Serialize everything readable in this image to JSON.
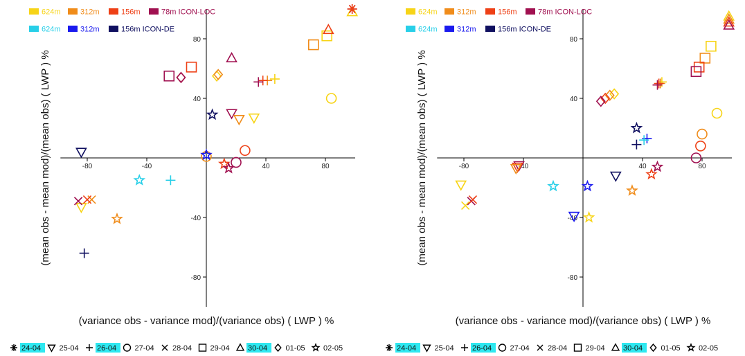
{
  "chart_data": [
    {
      "type": "scatter",
      "xlabel": "(variance obs - variance mod)/(variance obs) ( LWP ) %",
      "ylabel": "(mean obs - mean mod)/(mean obs) ( LWP ) %",
      "xlim": [
        -98,
        100
      ],
      "ylim": [
        -100,
        100
      ],
      "xticks": [
        -80,
        -40,
        40,
        80
      ],
      "yticks": [
        -80,
        -40,
        40,
        80
      ],
      "points": [
        {
          "x": 98,
          "y": 98,
          "color": "#f7d417",
          "marker": "triangle"
        },
        {
          "x": 98,
          "y": 100,
          "color": "#a01050",
          "marker": "asterisk"
        },
        {
          "x": 98,
          "y": 100,
          "color": "#ee4016",
          "marker": "asterisk"
        },
        {
          "x": 81,
          "y": 82,
          "color": "#f7d417",
          "marker": "square"
        },
        {
          "x": 82,
          "y": 86,
          "color": "#ee4016",
          "marker": "triangle"
        },
        {
          "x": 72,
          "y": 76,
          "color": "#f08c1a",
          "marker": "square"
        },
        {
          "x": 84,
          "y": 40,
          "color": "#f7d417",
          "marker": "circle"
        },
        {
          "x": 46,
          "y": 53,
          "color": "#f7d417",
          "marker": "plus"
        },
        {
          "x": 41,
          "y": 52,
          "color": "#f08c1a",
          "marker": "plus"
        },
        {
          "x": 38,
          "y": 52,
          "color": "#ee4016",
          "marker": "plus"
        },
        {
          "x": 35,
          "y": 51,
          "color": "#a01050",
          "marker": "plus"
        },
        {
          "x": 17,
          "y": 67,
          "color": "#a01050",
          "marker": "triangle"
        },
        {
          "x": 7,
          "y": 55,
          "color": "#f7d417",
          "marker": "diamond"
        },
        {
          "x": 8,
          "y": 56,
          "color": "#f08c1a",
          "marker": "diamond"
        },
        {
          "x": -17,
          "y": 54,
          "color": "#ee4016",
          "marker": "diamond"
        },
        {
          "x": -17,
          "y": 54,
          "color": "#a01050",
          "marker": "diamond"
        },
        {
          "x": -25,
          "y": 55,
          "color": "#a01050",
          "marker": "square"
        },
        {
          "x": -10,
          "y": 61,
          "color": "#ee4016",
          "marker": "square"
        },
        {
          "x": 4,
          "y": 29,
          "color": "#101060",
          "marker": "star"
        },
        {
          "x": 17,
          "y": 30,
          "color": "#a01050",
          "marker": "triangle-down"
        },
        {
          "x": 22,
          "y": 26,
          "color": "#f08c1a",
          "marker": "triangle-down"
        },
        {
          "x": 32,
          "y": 27,
          "color": "#f7d417",
          "marker": "triangle-down"
        },
        {
          "x": 26,
          "y": 5,
          "color": "#ee4016",
          "marker": "circle"
        },
        {
          "x": 20,
          "y": -3,
          "color": "#a01050",
          "marker": "circle"
        },
        {
          "x": 12,
          "y": -4,
          "color": "#ee4016",
          "marker": "star"
        },
        {
          "x": 15,
          "y": -7,
          "color": "#a01050",
          "marker": "star"
        },
        {
          "x": 0,
          "y": 1,
          "color": "#f08c1a",
          "marker": "circle"
        },
        {
          "x": 0,
          "y": 2,
          "color": "#1a1aee",
          "marker": "star"
        },
        {
          "x": -84,
          "y": 4,
          "color": "#101060",
          "marker": "triangle-down"
        },
        {
          "x": -45,
          "y": -15,
          "color": "#28cfe8",
          "marker": "star"
        },
        {
          "x": -24,
          "y": -15,
          "color": "#28cfe8",
          "marker": "plus"
        },
        {
          "x": -60,
          "y": -41,
          "color": "#f08c1a",
          "marker": "star"
        },
        {
          "x": -84,
          "y": -33,
          "color": "#f7d417",
          "marker": "triangle-down"
        },
        {
          "x": -77,
          "y": -28,
          "color": "#f08c1a",
          "marker": "cross"
        },
        {
          "x": -80,
          "y": -28,
          "color": "#ee4016",
          "marker": "cross"
        },
        {
          "x": -86,
          "y": -29,
          "color": "#a01050",
          "marker": "cross"
        },
        {
          "x": -82,
          "y": -64,
          "color": "#101060",
          "marker": "plus"
        }
      ]
    },
    {
      "type": "scatter",
      "xlabel": "(variance obs - variance mod)/(variance obs) ( LWP ) %",
      "ylabel": "(mean obs - mean mod)/(mean obs) ( LWP ) %",
      "xlim": [
        -98,
        100
      ],
      "ylim": [
        -100,
        100
      ],
      "xticks": [
        -80,
        -40,
        40,
        80
      ],
      "yticks": [
        -80,
        -40,
        40,
        80
      ],
      "points": [
        {
          "x": 98,
          "y": 95,
          "color": "#f7d417",
          "marker": "triangle"
        },
        {
          "x": 98,
          "y": 93,
          "color": "#f08c1a",
          "marker": "triangle"
        },
        {
          "x": 98,
          "y": 91,
          "color": "#ee4016",
          "marker": "triangle"
        },
        {
          "x": 98,
          "y": 89,
          "color": "#a01050",
          "marker": "triangle"
        },
        {
          "x": 86,
          "y": 75,
          "color": "#f7d417",
          "marker": "square"
        },
        {
          "x": 82,
          "y": 67,
          "color": "#f08c1a",
          "marker": "square"
        },
        {
          "x": 78,
          "y": 61,
          "color": "#ee4016",
          "marker": "square"
        },
        {
          "x": 76,
          "y": 58,
          "color": "#a01050",
          "marker": "square"
        },
        {
          "x": 90,
          "y": 30,
          "color": "#f7d417",
          "marker": "circle"
        },
        {
          "x": 80,
          "y": 16,
          "color": "#f08c1a",
          "marker": "circle"
        },
        {
          "x": 79,
          "y": 8,
          "color": "#ee4016",
          "marker": "circle"
        },
        {
          "x": 76,
          "y": 0,
          "color": "#a01050",
          "marker": "circle"
        },
        {
          "x": 53,
          "y": 51,
          "color": "#f7d417",
          "marker": "plus"
        },
        {
          "x": 52,
          "y": 50,
          "color": "#f08c1a",
          "marker": "plus"
        },
        {
          "x": 51,
          "y": 50,
          "color": "#ee4016",
          "marker": "plus"
        },
        {
          "x": 50,
          "y": 49,
          "color": "#a01050",
          "marker": "plus"
        },
        {
          "x": 21,
          "y": 43,
          "color": "#f7d417",
          "marker": "diamond"
        },
        {
          "x": 18,
          "y": 42,
          "color": "#f08c1a",
          "marker": "diamond"
        },
        {
          "x": 15,
          "y": 40,
          "color": "#ee4016",
          "marker": "diamond"
        },
        {
          "x": 12,
          "y": 38,
          "color": "#a01050",
          "marker": "diamond"
        },
        {
          "x": 36,
          "y": 20,
          "color": "#101060",
          "marker": "star"
        },
        {
          "x": 36,
          "y": 9,
          "color": "#101060",
          "marker": "plus"
        },
        {
          "x": 43,
          "y": 13,
          "color": "#1a1aee",
          "marker": "plus"
        },
        {
          "x": 41,
          "y": 12,
          "color": "#28cfe8",
          "marker": "plus"
        },
        {
          "x": 22,
          "y": -12,
          "color": "#101060",
          "marker": "triangle-down"
        },
        {
          "x": 50,
          "y": -6,
          "color": "#a01050",
          "marker": "star"
        },
        {
          "x": 46,
          "y": -11,
          "color": "#ee4016",
          "marker": "star"
        },
        {
          "x": 33,
          "y": -22,
          "color": "#f08c1a",
          "marker": "star"
        },
        {
          "x": 3,
          "y": -19,
          "color": "#1a1aee",
          "marker": "star"
        },
        {
          "x": -20,
          "y": -19,
          "color": "#28cfe8",
          "marker": "star"
        },
        {
          "x": -6,
          "y": -39,
          "color": "#1a1aee",
          "marker": "triangle-down"
        },
        {
          "x": 4,
          "y": -40,
          "color": "#f7d417",
          "marker": "star"
        },
        {
          "x": -43,
          "y": -5,
          "color": "#a01050",
          "marker": "triangle-down"
        },
        {
          "x": -44,
          "y": -6,
          "color": "#ee4016",
          "marker": "triangle-down"
        },
        {
          "x": -45,
          "y": -7,
          "color": "#f08c1a",
          "marker": "triangle-down"
        },
        {
          "x": -82,
          "y": -18,
          "color": "#f7d417",
          "marker": "triangle-down"
        },
        {
          "x": -79,
          "y": -32,
          "color": "#f7d417",
          "marker": "cross"
        },
        {
          "x": -75,
          "y": -29,
          "color": "#a01050",
          "marker": "cross"
        },
        {
          "x": -74,
          "y": -28,
          "color": "#ee4016",
          "marker": "cross"
        }
      ]
    }
  ],
  "legend_models": [
    {
      "label": "624m",
      "color": "#f7d417",
      "text_color": "#f7d417"
    },
    {
      "label": "312m",
      "color": "#f08c1a",
      "text_color": "#f08c1a"
    },
    {
      "label": "156m",
      "color": "#ee4016",
      "text_color": "#ee4016"
    },
    {
      "label": "78m ICON-LOC",
      "color": "#a01050",
      "text_color": "#a01050"
    },
    {
      "label": "624m",
      "color": "#28cfe8",
      "text_color": "#28cfe8"
    },
    {
      "label": "312m",
      "color": "#1a1aee",
      "text_color": "#1a1aee"
    },
    {
      "label": "156m ICON-DE",
      "color": "#101060",
      "text_color": "#101060"
    }
  ],
  "legend_dates": [
    {
      "marker": "asterisk",
      "label": "24-04",
      "highlight": true
    },
    {
      "marker": "triangle-down",
      "label": "25-04",
      "highlight": false
    },
    {
      "marker": "plus",
      "label": "26-04",
      "highlight": true
    },
    {
      "marker": "circle",
      "label": "27-04",
      "highlight": false
    },
    {
      "marker": "cross",
      "label": "28-04",
      "highlight": false
    },
    {
      "marker": "square",
      "label": "29-04",
      "highlight": false
    },
    {
      "marker": "triangle",
      "label": "30-04",
      "highlight": true
    },
    {
      "marker": "diamond",
      "label": "01-05",
      "highlight": false
    },
    {
      "marker": "star",
      "label": "02-05",
      "highlight": false
    }
  ],
  "highlight_color": "#2ee8f0"
}
